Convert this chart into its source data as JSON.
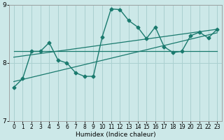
{
  "xlabel": "Humidex (Indice chaleur)",
  "xlim": [
    -0.5,
    23.5
  ],
  "ylim": [
    7,
    9
  ],
  "yticks": [
    7,
    8,
    9
  ],
  "xticks": [
    0,
    1,
    2,
    3,
    4,
    5,
    6,
    7,
    8,
    9,
    10,
    11,
    12,
    13,
    14,
    15,
    16,
    17,
    18,
    19,
    20,
    21,
    22,
    23
  ],
  "bg_color": "#cce8e8",
  "grid_color": "#aad0d0",
  "line_color": "#1a7a6e",
  "data_y": [
    7.58,
    7.73,
    8.2,
    8.2,
    8.35,
    8.05,
    8.0,
    7.83,
    7.77,
    7.77,
    8.45,
    8.93,
    8.92,
    8.73,
    8.62,
    8.42,
    8.62,
    8.28,
    8.18,
    8.2,
    8.47,
    8.53,
    8.43,
    8.58
  ],
  "flat_line_y": 8.2,
  "slope_line": [
    8.1,
    8.58
  ],
  "trend_line": [
    7.68,
    8.52
  ]
}
